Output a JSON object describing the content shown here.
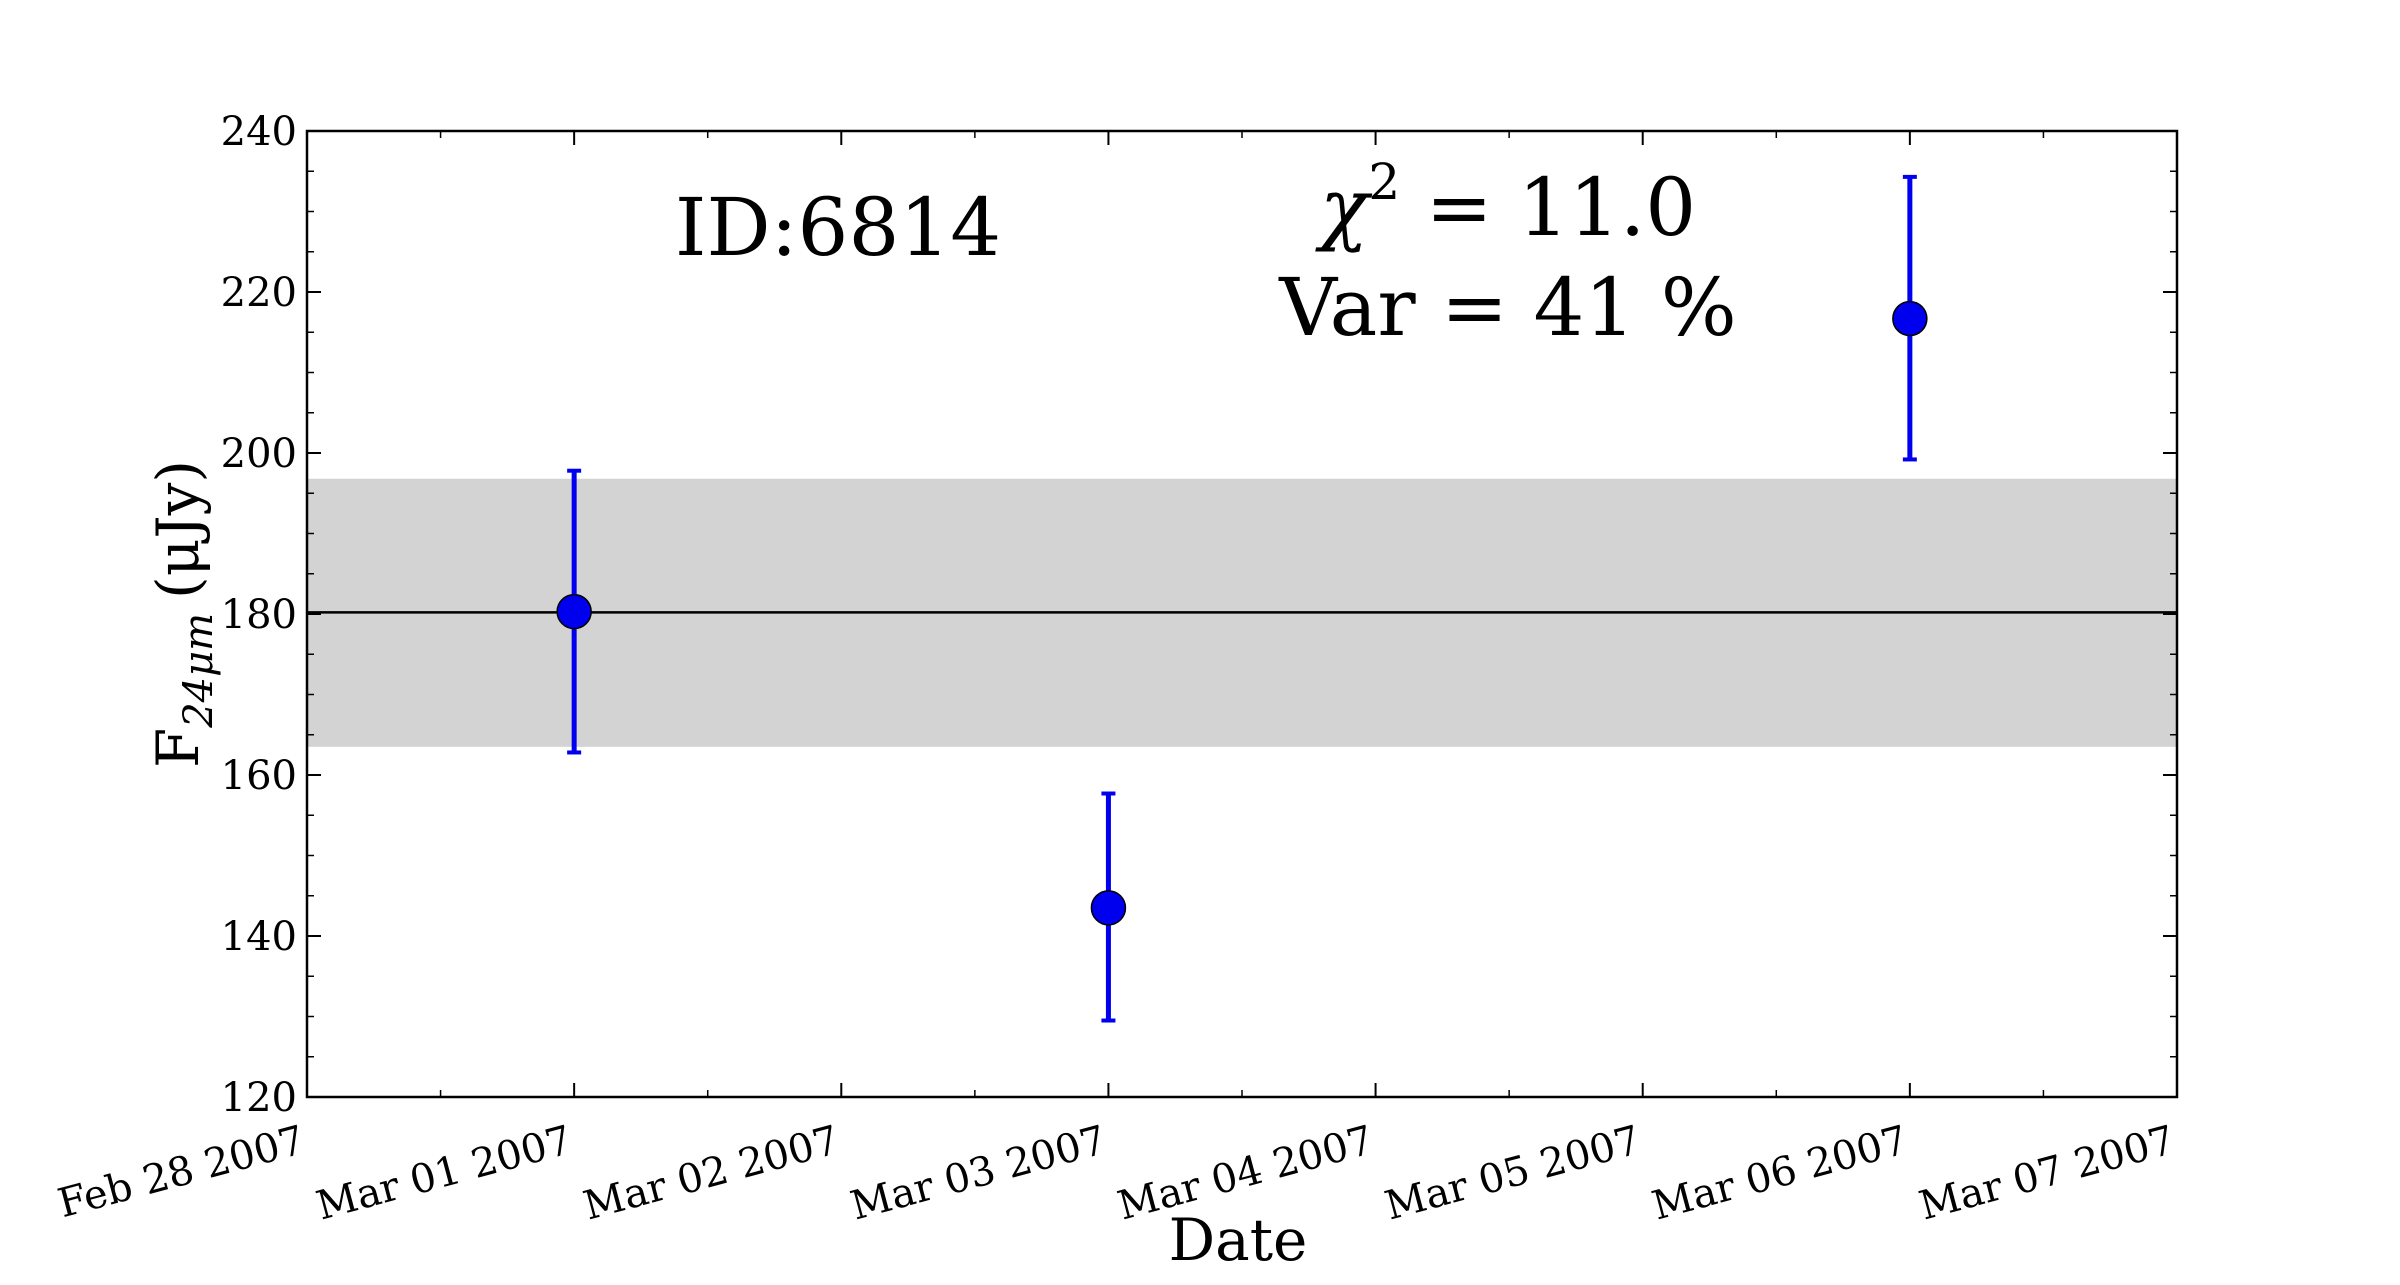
{
  "chart_data": {
    "type": "scatter",
    "xlabel": "Date",
    "ylabel_main": "F",
    "ylabel_sub": "24μm",
    "ylabel_unit": "(μJy)",
    "xlim": [
      "2007-02-28",
      "2007-03-07"
    ],
    "ylim": [
      120,
      240
    ],
    "x_ticks": [
      "Feb 28 2007",
      "Mar 01 2007",
      "Mar 02 2007",
      "Mar 03 2007",
      "Mar 04 2007",
      "Mar 05 2007",
      "Mar 06 2007",
      "Mar 07 2007"
    ],
    "y_ticks": [
      "120",
      "140",
      "160",
      "180",
      "200",
      "220",
      "240"
    ],
    "points": [
      {
        "date": "2007-03-01",
        "y": 180.3,
        "yerr_low": 162.8,
        "yerr_high": 197.8
      },
      {
        "date": "2007-03-03",
        "y": 143.5,
        "yerr_low": 129.5,
        "yerr_high": 157.7
      },
      {
        "date": "2007-03-06",
        "y": 216.7,
        "yerr_low": 199.2,
        "yerr_high": 234.3
      }
    ],
    "mean": 180.2,
    "band": [
      163.5,
      196.8
    ],
    "colors": {
      "points": "#0000ee",
      "band": "#d3d3d3",
      "mean_line": "#000000"
    },
    "annotations": {
      "id_text": "ID:6814",
      "chi_symbol": "χ",
      "chi_exp": "2",
      "chi_value": " = 11.0",
      "var_text": "Var = 41 %"
    }
  }
}
